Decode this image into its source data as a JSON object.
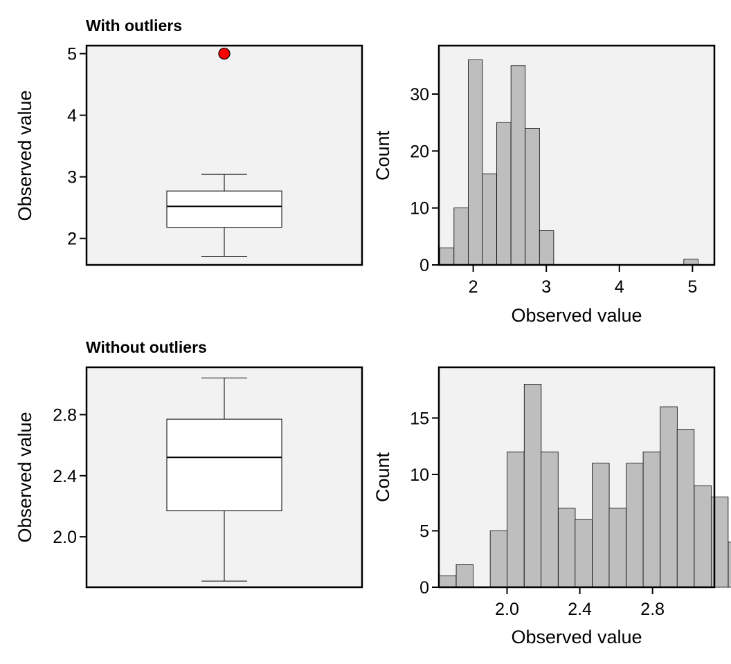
{
  "colors": {
    "panel_bg": "#f2f2f2",
    "frame": "#000000",
    "bar_fill": "#bebebe",
    "box_fill": "#ffffff",
    "outlier_fill": "#ff0000"
  },
  "chart_data": [
    {
      "id": "box_with",
      "type": "box",
      "title": "With outliers",
      "xlabel": "",
      "ylabel": "Observed value",
      "ylim": [
        1.57,
        5.13
      ],
      "yticks": [
        2,
        3,
        4,
        5
      ],
      "ytick_labels": [
        "2",
        "3",
        "4",
        "5"
      ],
      "box": {
        "whisker_low": 1.71,
        "q1": 2.18,
        "median": 2.52,
        "q3": 2.77,
        "whisker_high": 3.04
      },
      "outliers": [
        5.0
      ],
      "grid": false
    },
    {
      "id": "hist_with",
      "type": "bar",
      "title": "",
      "xlabel": "Observed value",
      "ylabel": "Count",
      "xlim": [
        1.53,
        5.3
      ],
      "ylim": [
        0,
        38.5
      ],
      "xticks": [
        2,
        3,
        4,
        5
      ],
      "xtick_labels": [
        "2",
        "3",
        "4",
        "5"
      ],
      "yticks": [
        0,
        10,
        20,
        30
      ],
      "ytick_labels": [
        "0",
        "10",
        "20",
        "30"
      ],
      "bin_width": 0.195,
      "bins": [
        {
          "x": 1.639,
          "count": 3
        },
        {
          "x": 1.834,
          "count": 10
        },
        {
          "x": 2.029,
          "count": 36
        },
        {
          "x": 2.224,
          "count": 16
        },
        {
          "x": 2.419,
          "count": 25
        },
        {
          "x": 2.614,
          "count": 35
        },
        {
          "x": 2.809,
          "count": 24
        },
        {
          "x": 3.004,
          "count": 6
        },
        {
          "x": 4.979,
          "count": 1
        }
      ],
      "grid": false
    },
    {
      "id": "box_without",
      "type": "box",
      "title": "Without outliers",
      "xlabel": "",
      "ylabel": "Observed value",
      "ylim": [
        1.67,
        3.11
      ],
      "yticks": [
        2.0,
        2.4,
        2.8
      ],
      "ytick_labels": [
        "2.0",
        "2.4",
        "2.8"
      ],
      "box": {
        "whisker_low": 1.71,
        "q1": 2.17,
        "median": 2.52,
        "q3": 2.77,
        "whisker_high": 3.04
      },
      "outliers": [],
      "grid": false
    },
    {
      "id": "hist_without",
      "type": "bar",
      "title": "",
      "xlabel": "Observed value",
      "ylabel": "Count",
      "xlim": [
        1.625,
        3.14
      ],
      "ylim": [
        0,
        19.5
      ],
      "xticks": [
        2.0,
        2.4,
        2.8
      ],
      "xtick_labels": [
        "2.0",
        "2.4",
        "2.8"
      ],
      "yticks": [
        0,
        5,
        10,
        15
      ],
      "ytick_labels": [
        "0",
        "5",
        "10",
        "15"
      ],
      "bin_width": 0.0935,
      "bins": [
        {
          "x": 1.673,
          "count": 1
        },
        {
          "x": 1.767,
          "count": 2
        },
        {
          "x": 1.86,
          "count": 0
        },
        {
          "x": 1.954,
          "count": 5
        },
        {
          "x": 2.047,
          "count": 12
        },
        {
          "x": 2.141,
          "count": 18
        },
        {
          "x": 2.234,
          "count": 12
        },
        {
          "x": 2.328,
          "count": 7
        },
        {
          "x": 2.421,
          "count": 6
        },
        {
          "x": 2.515,
          "count": 11
        },
        {
          "x": 2.608,
          "count": 7
        },
        {
          "x": 2.702,
          "count": 11
        },
        {
          "x": 2.795,
          "count": 12
        },
        {
          "x": 2.889,
          "count": 16
        },
        {
          "x": 2.982,
          "count": 14
        },
        {
          "x": 3.076,
          "count": 9
        },
        {
          "x": 3.169,
          "count": 8
        },
        {
          "x": 3.263,
          "count": 4
        }
      ],
      "grid": false
    }
  ]
}
